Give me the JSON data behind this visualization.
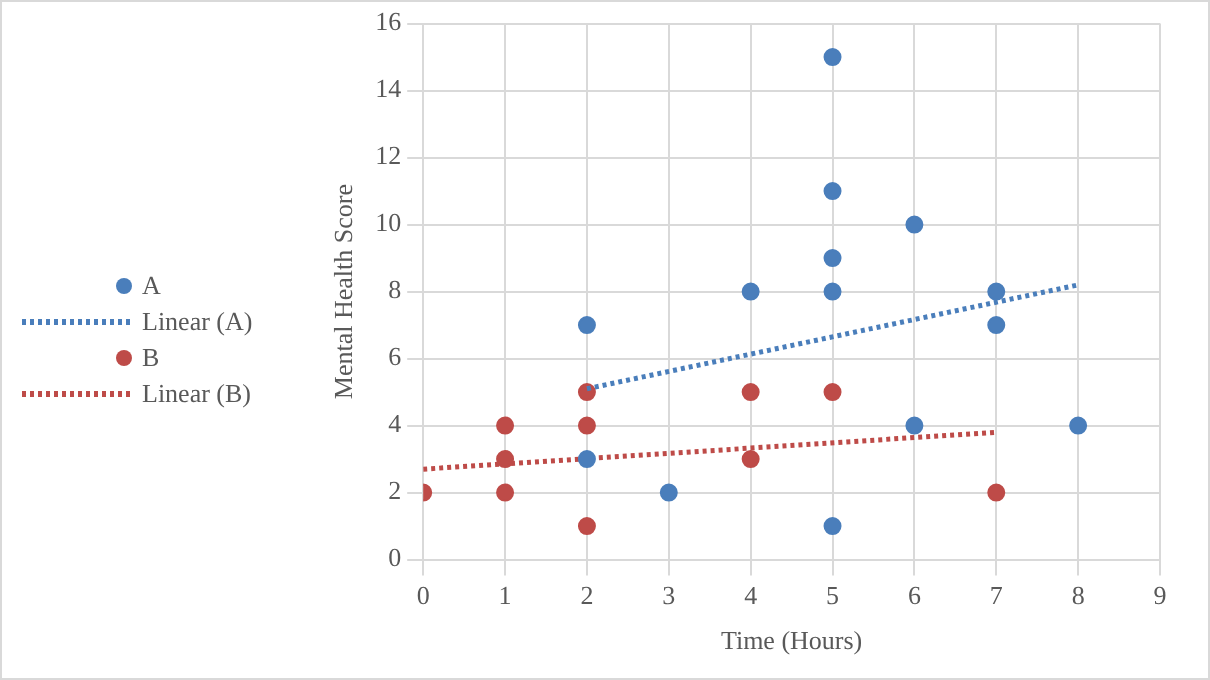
{
  "chart_data": {
    "type": "scatter",
    "xlabel": "Time (Hours)",
    "ylabel": "Mental Health Score",
    "xlim": [
      0,
      9
    ],
    "xticks": [
      0,
      1,
      2,
      3,
      4,
      5,
      6,
      7,
      8,
      9
    ],
    "ylim": [
      0,
      16
    ],
    "yticks": [
      0,
      2,
      4,
      6,
      8,
      10,
      12,
      14,
      16
    ],
    "grid": true,
    "legend": "left",
    "marker": "circle",
    "series": [
      {
        "name": "A",
        "color": "#4a7ebb",
        "x": [
          2,
          2,
          3,
          4,
          5,
          5,
          5,
          5,
          5,
          6,
          6,
          7,
          7,
          8
        ],
        "values": [
          7,
          3,
          2,
          8,
          15,
          11,
          9,
          8,
          1,
          10,
          4,
          8,
          7,
          4
        ]
      },
      {
        "name": "Linear (A)",
        "type": "line",
        "color": "#4a7ebb",
        "line_style": "dotted",
        "marker": "none",
        "x": [
          2,
          8
        ],
        "values": [
          5.1,
          8.2
        ]
      },
      {
        "name": "B",
        "color": "#be4b48",
        "x": [
          0,
          1,
          1,
          1,
          2,
          2,
          2,
          4,
          4,
          5,
          7
        ],
        "values": [
          2,
          4,
          3,
          2,
          5,
          4,
          1,
          5,
          3,
          5,
          2
        ]
      },
      {
        "name": "Linear (B)",
        "type": "line",
        "color": "#be4b48",
        "line_style": "dotted",
        "marker": "none",
        "x": [
          0,
          7
        ],
        "values": [
          2.7,
          3.8
        ]
      }
    ]
  }
}
